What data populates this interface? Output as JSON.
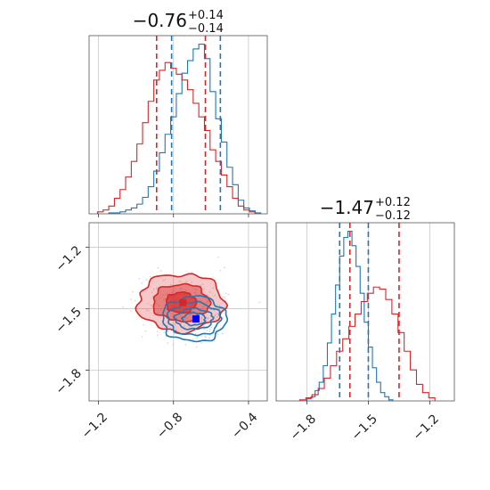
{
  "chart_data": [
    {
      "type": "histogram",
      "panel": "marginal-x",
      "title": {
        "value": "−0.76",
        "upper": "+0.14",
        "lower": "−0.14"
      },
      "xlim": [
        -1.25,
        -0.3
      ],
      "grid": true,
      "ticks": [
        -1.2,
        -0.8,
        -0.4
      ],
      "series": [
        {
          "color": "#1f77b4",
          "quantiles": [
            -0.81,
            -0.55
          ],
          "x": [
            -1.13,
            -1.1,
            -1.07,
            -1.04,
            -1.01,
            -0.98,
            -0.95,
            -0.92,
            -0.89,
            -0.86,
            -0.83,
            -0.8,
            -0.77,
            -0.74,
            -0.71,
            -0.68,
            -0.65,
            -0.62,
            -0.59,
            -0.56,
            -0.53,
            -0.5,
            -0.47,
            -0.44,
            -0.41,
            -0.38,
            -0.35
          ],
          "counts": [
            1,
            1,
            2,
            4,
            6,
            10,
            17,
            28,
            44,
            63,
            82,
            100,
            124,
            145,
            158,
            170,
            175,
            160,
            126,
            98,
            74,
            48,
            30,
            14,
            6,
            3,
            1
          ]
        },
        {
          "color": "#d62728",
          "quantiles": [
            -0.89,
            -0.63
          ],
          "x": [
            -1.19,
            -1.16,
            -1.13,
            -1.1,
            -1.07,
            -1.04,
            -1.01,
            -0.98,
            -0.95,
            -0.92,
            -0.89,
            -0.86,
            -0.83,
            -0.8,
            -0.77,
            -0.74,
            -0.71,
            -0.68,
            -0.65,
            -0.62,
            -0.59,
            -0.56,
            -0.53,
            -0.5,
            -0.47,
            -0.44,
            -0.41,
            -0.38
          ],
          "counts": [
            2,
            4,
            8,
            16,
            25,
            38,
            54,
            72,
            94,
            116,
            138,
            148,
            156,
            150,
            144,
            138,
            128,
            114,
            100,
            86,
            66,
            54,
            40,
            28,
            16,
            8,
            4,
            2
          ]
        }
      ]
    },
    {
      "type": "contour",
      "panel": "joint",
      "xlim": [
        -1.25,
        -0.3
      ],
      "ylim": [
        -1.95,
        -1.08
      ],
      "xticks": [
        -1.2,
        -0.8,
        -0.4
      ],
      "yticks": [
        -1.2,
        -1.5,
        -1.8
      ],
      "grid": true,
      "series": [
        {
          "color": "#d62728",
          "filled": true,
          "center": [
            -0.76,
            -1.47
          ],
          "levels": [
            {
              "rx": 0.23,
              "ry": 0.14,
              "opacity": 0.25
            },
            {
              "rx": 0.15,
              "ry": 0.09,
              "opacity": 0.45
            },
            {
              "rx": 0.08,
              "ry": 0.05,
              "opacity": 0.65
            }
          ]
        },
        {
          "color": "#1f77b4",
          "filled": false,
          "center": [
            -0.69,
            -1.55
          ],
          "levels": [
            {
              "rx": 0.17,
              "ry": 0.11
            },
            {
              "rx": 0.14,
              "ry": 0.08
            },
            {
              "rx": 0.1,
              "ry": 0.05
            },
            {
              "rx": 0.06,
              "ry": 0.03
            }
          ]
        }
      ],
      "markers": [
        {
          "color": "#d62728",
          "x": -0.75,
          "y": -1.47
        },
        {
          "color": "#0000ff",
          "x": -0.68,
          "y": -1.55
        }
      ]
    },
    {
      "type": "histogram",
      "panel": "marginal-y",
      "title": {
        "value": "−1.47",
        "upper": "+0.12",
        "lower": "−0.12"
      },
      "xlim": [
        -1.95,
        -1.08
      ],
      "grid": true,
      "ticks": [
        -1.8,
        -1.5,
        -1.2
      ],
      "series": [
        {
          "color": "#1f77b4",
          "quantiles": [
            -1.64,
            -1.5
          ],
          "x": [
            -1.79,
            -1.77,
            -1.75,
            -1.73,
            -1.71,
            -1.69,
            -1.67,
            -1.65,
            -1.63,
            -1.61,
            -1.59,
            -1.57,
            -1.55,
            -1.53,
            -1.51,
            -1.49,
            -1.47,
            -1.45,
            -1.43,
            -1.41,
            -1.39
          ],
          "counts": [
            2,
            4,
            10,
            18,
            34,
            56,
            84,
            112,
            140,
            158,
            164,
            150,
            130,
            104,
            76,
            52,
            32,
            18,
            8,
            4,
            1
          ]
        },
        {
          "color": "#d62728",
          "quantiles": [
            -1.59,
            -1.35
          ],
          "x": [
            -1.82,
            -1.79,
            -1.76,
            -1.73,
            -1.7,
            -1.67,
            -1.64,
            -1.61,
            -1.58,
            -1.55,
            -1.52,
            -1.49,
            -1.46,
            -1.43,
            -1.4,
            -1.37,
            -1.34,
            -1.31,
            -1.28,
            -1.25,
            -1.22,
            -1.19
          ],
          "counts": [
            1,
            3,
            6,
            12,
            22,
            34,
            48,
            60,
            72,
            84,
            96,
            104,
            110,
            108,
            98,
            84,
            66,
            48,
            30,
            16,
            8,
            3
          ]
        }
      ]
    }
  ]
}
